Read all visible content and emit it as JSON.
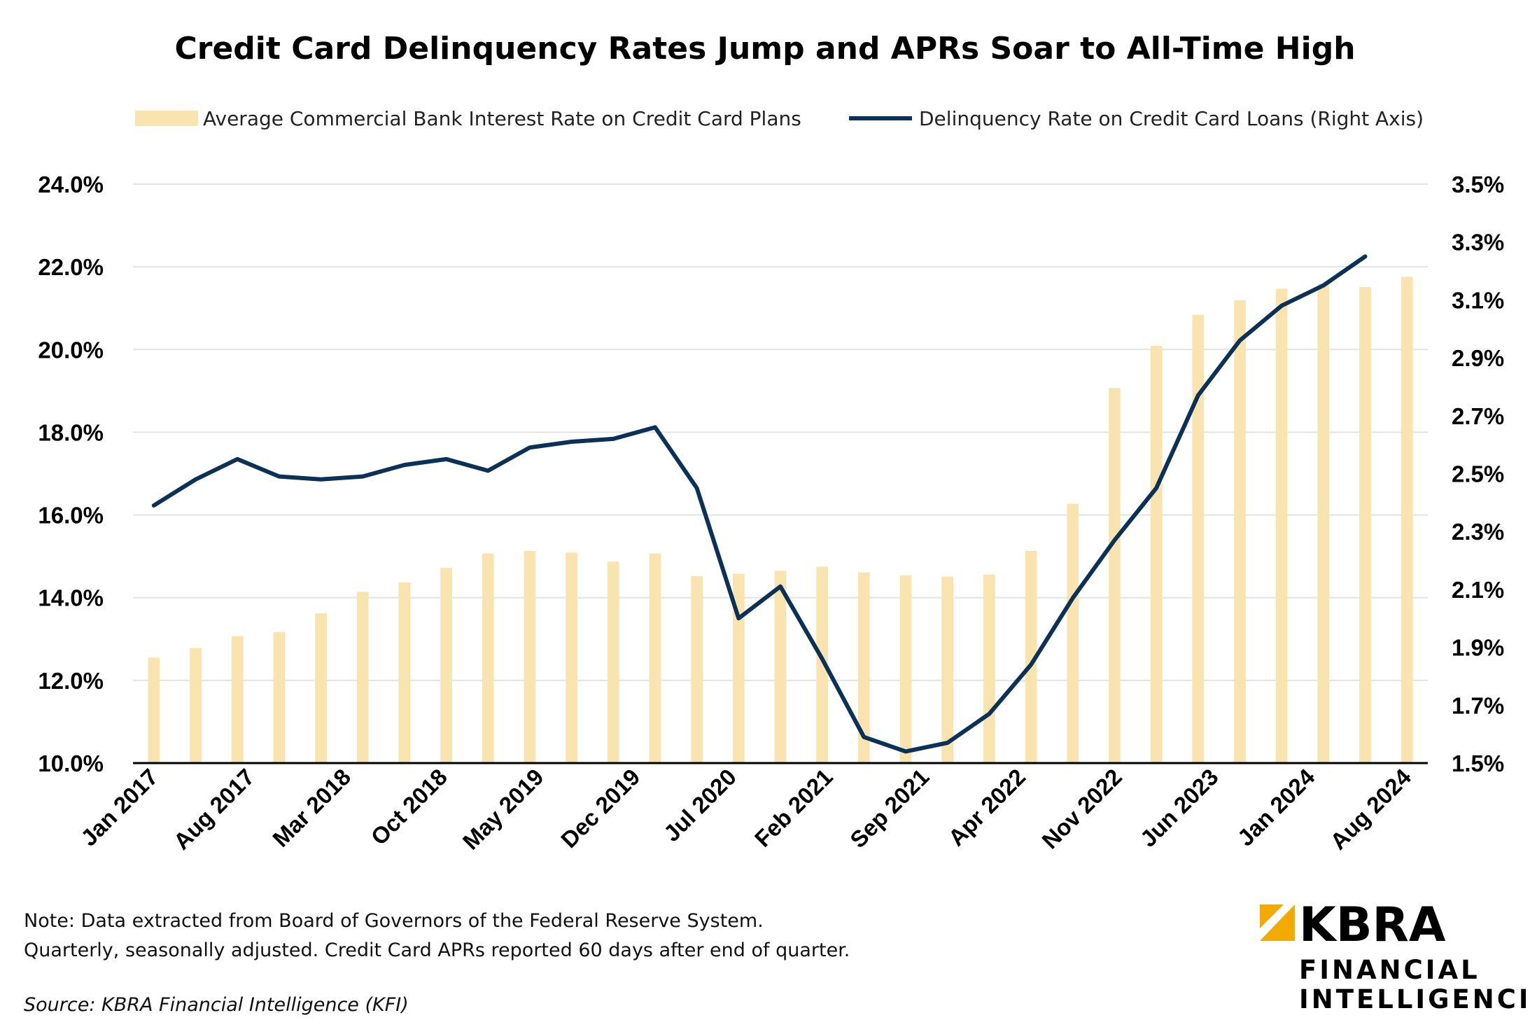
{
  "chart_data": {
    "type": "bar+line",
    "title": "Credit Card Delinquency Rates Jump and APRs Soar to All-Time High",
    "legend": [
      {
        "name": "Average Commercial Bank Interest Rate on Credit Card Plans",
        "kind": "bar",
        "color": "#F9E4B0"
      },
      {
        "name": "Delinquency Rate on Credit Card Loans (Right Axis)",
        "kind": "line",
        "color": "#0B3256"
      }
    ],
    "legend_placement": "top",
    "x_tick_labels": [
      "Jan 2017",
      "Aug 2017",
      "Mar 2018",
      "Oct 2018",
      "May 2019",
      "Dec 2019",
      "Jul 2020",
      "Feb 2021",
      "Sep 2021",
      "Apr 2022",
      "Nov 2022",
      "Jun 2023",
      "Jan 2024",
      "Aug 2024"
    ],
    "left_axis": {
      "ylim": [
        10,
        24
      ],
      "ticks": [
        "10.0%",
        "12.0%",
        "14.0%",
        "16.0%",
        "18.0%",
        "20.0%",
        "22.0%",
        "24.0%"
      ]
    },
    "right_axis": {
      "ylim": [
        1.5,
        3.5
      ],
      "ticks": [
        "1.5%",
        "1.7%",
        "1.9%",
        "2.1%",
        "2.3%",
        "2.5%",
        "2.7%",
        "2.9%",
        "3.1%",
        "3.3%",
        "3.5%"
      ]
    },
    "grid": true,
    "bar_values": [
      12.55,
      12.78,
      13.07,
      13.17,
      13.62,
      14.14,
      14.37,
      14.72,
      15.07,
      15.13,
      15.09,
      14.87,
      15.07,
      14.52,
      14.58,
      14.65,
      14.75,
      14.61,
      14.54,
      14.51,
      14.56,
      15.13,
      16.27,
      19.07,
      20.09,
      20.84,
      21.19,
      21.47,
      21.59,
      21.51,
      21.76
    ],
    "line_values": [
      2.39,
      2.48,
      2.55,
      2.49,
      2.48,
      2.49,
      2.53,
      2.55,
      2.51,
      2.59,
      2.61,
      2.62,
      2.66,
      2.45,
      2.0,
      2.11,
      1.86,
      1.59,
      1.54,
      1.57,
      1.67,
      1.84,
      2.07,
      2.27,
      2.45,
      2.77,
      2.96,
      3.08,
      3.15,
      3.25
    ]
  },
  "notes": {
    "line1": "Note: Data extracted from Board of Governors of the Federal Reserve System.",
    "line2": "Quarterly, seasonally adjusted. Credit Card APRs reported 60 days after end of quarter.",
    "source": "Source: KBRA Financial Intelligence (KFI)"
  },
  "logo": {
    "brand": "KBRA",
    "line1": "FINANCIAL",
    "line2": "INTELLIGENCE",
    "accent_color": "#F2A900"
  }
}
